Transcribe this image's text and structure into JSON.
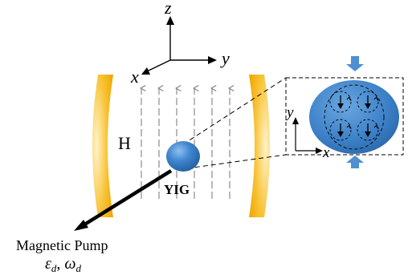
{
  "axes_top": {
    "z": "z",
    "y": "y",
    "x": "x"
  },
  "field_label": "H",
  "sphere_label": "YIG",
  "inset_axes": {
    "y": "y",
    "x": "x"
  },
  "pump_label": "Magnetic Pump",
  "pump_params": {
    "eps": "ε",
    "eps_sub": "d",
    "sep": ", ",
    "omega": "ω",
    "omega_sub": "d"
  },
  "colors": {
    "mirror": "#f6b71a",
    "sphere": "#3f86cf",
    "sphere_dark": "#1f5c9c",
    "inset_arrow": "#4f8fd2",
    "field_lines": "#808080"
  },
  "icons": [
    "mirror-left",
    "mirror-right",
    "yig-sphere",
    "zoom-inset",
    "compression-arrow-top",
    "compression-arrow-bottom",
    "pump-arrow"
  ]
}
